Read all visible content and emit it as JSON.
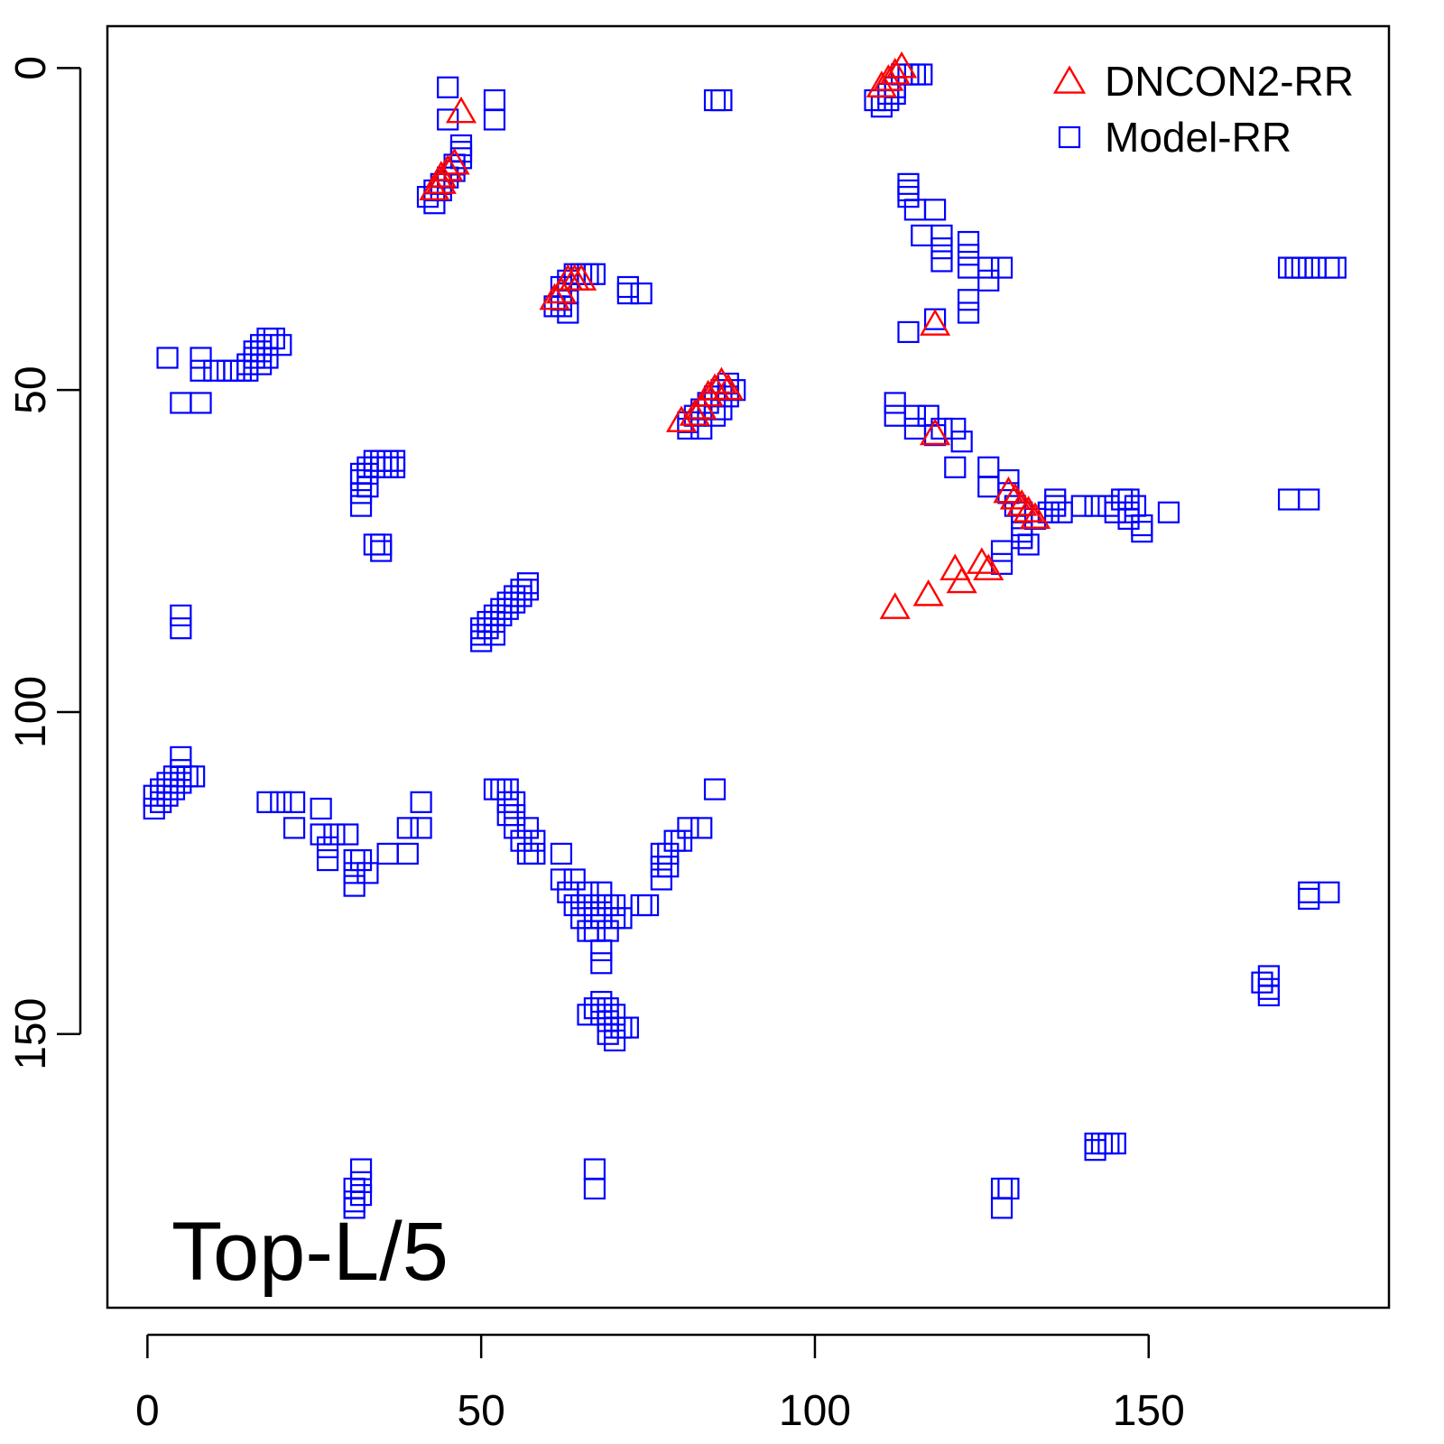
{
  "chart_data": {
    "type": "scatter",
    "title": "",
    "annotation": "Top-L/5",
    "xlabel": "",
    "ylabel": "",
    "xlim": [
      -6,
      186
    ],
    "ylim": [
      -6.5,
      192.5
    ],
    "y_axis_inverted": true,
    "x_ticks": [
      0,
      50,
      100,
      150
    ],
    "x_tick_labels": [
      "0",
      "50",
      "100",
      "150"
    ],
    "y_ticks": [
      0,
      50,
      100,
      150
    ],
    "y_tick_labels": [
      "0",
      "50",
      "100",
      "150"
    ],
    "grid": false,
    "legend_position": "top-right",
    "series": [
      {
        "name": "DNCON2-RR",
        "marker": "triangle",
        "color": "#ff0000",
        "points": [
          [
            44,
            17
          ],
          [
            45,
            16
          ],
          [
            46,
            15
          ],
          [
            47,
            7
          ],
          [
            44,
            18
          ],
          [
            43,
            19
          ],
          [
            61,
            36
          ],
          [
            62,
            35
          ],
          [
            63,
            33
          ],
          [
            64,
            33
          ],
          [
            65,
            33
          ],
          [
            80,
            55
          ],
          [
            82,
            54
          ],
          [
            83,
            53
          ],
          [
            84,
            51
          ],
          [
            85,
            50
          ],
          [
            86,
            49
          ],
          [
            87,
            50
          ],
          [
            110,
            3
          ],
          [
            111,
            2
          ],
          [
            112,
            1
          ],
          [
            113,
            0
          ],
          [
            118,
            40
          ],
          [
            118,
            57
          ],
          [
            129,
            66
          ],
          [
            130,
            67
          ],
          [
            131,
            68
          ],
          [
            132,
            69
          ],
          [
            133,
            70
          ],
          [
            112,
            84
          ],
          [
            117,
            82
          ],
          [
            121,
            78
          ],
          [
            122,
            80
          ],
          [
            125,
            77
          ],
          [
            126,
            78
          ]
        ]
      },
      {
        "name": "Model-RR",
        "marker": "square",
        "color": "#0000ff",
        "points": [
          [
            45,
            3
          ],
          [
            45,
            8
          ],
          [
            47,
            12
          ],
          [
            47,
            13
          ],
          [
            47,
            14
          ],
          [
            46,
            15
          ],
          [
            45,
            17
          ],
          [
            44,
            18
          ],
          [
            43,
            19
          ],
          [
            42,
            20
          ],
          [
            43,
            21
          ],
          [
            44,
            19
          ],
          [
            46,
            16
          ],
          [
            52,
            5
          ],
          [
            52,
            8
          ],
          [
            85,
            5
          ],
          [
            86,
            5
          ],
          [
            109,
            5
          ],
          [
            110,
            6
          ],
          [
            111,
            4
          ],
          [
            112,
            3
          ],
          [
            113,
            1
          ],
          [
            114,
            1
          ],
          [
            115,
            1
          ],
          [
            116,
            1
          ],
          [
            111,
            5
          ],
          [
            112,
            4
          ],
          [
            114,
            18
          ],
          [
            114,
            19
          ],
          [
            114,
            20
          ],
          [
            115,
            22
          ],
          [
            118,
            22
          ],
          [
            116,
            26
          ],
          [
            119,
            26
          ],
          [
            119,
            28
          ],
          [
            119,
            30
          ],
          [
            123,
            27
          ],
          [
            123,
            29
          ],
          [
            123,
            31
          ],
          [
            126,
            31
          ],
          [
            128,
            31
          ],
          [
            126,
            33
          ],
          [
            123,
            38
          ],
          [
            123,
            36
          ],
          [
            118,
            39
          ],
          [
            114,
            41
          ],
          [
            62,
            34
          ],
          [
            62,
            36
          ],
          [
            63,
            33
          ],
          [
            63,
            35
          ],
          [
            64,
            32
          ],
          [
            65,
            32
          ],
          [
            66,
            32
          ],
          [
            67,
            32
          ],
          [
            62,
            37
          ],
          [
            63,
            38
          ],
          [
            61,
            37
          ],
          [
            72,
            34
          ],
          [
            74,
            35
          ],
          [
            72,
            35
          ],
          [
            3,
            45
          ],
          [
            8,
            45
          ],
          [
            8,
            47
          ],
          [
            10,
            47
          ],
          [
            12,
            47
          ],
          [
            13,
            47
          ],
          [
            14,
            47
          ],
          [
            15,
            46
          ],
          [
            16,
            45
          ],
          [
            16,
            44
          ],
          [
            17,
            44
          ],
          [
            17,
            43
          ],
          [
            18,
            42
          ],
          [
            19,
            42
          ],
          [
            20,
            43
          ],
          [
            18,
            45
          ],
          [
            17,
            46
          ],
          [
            15,
            47
          ],
          [
            5,
            52
          ],
          [
            8,
            52
          ],
          [
            81,
            55
          ],
          [
            82,
            54
          ],
          [
            83,
            53
          ],
          [
            84,
            52
          ],
          [
            85,
            51
          ],
          [
            86,
            50
          ],
          [
            87,
            49
          ],
          [
            88,
            50
          ],
          [
            81,
            56
          ],
          [
            83,
            56
          ],
          [
            85,
            54
          ],
          [
            86,
            53
          ],
          [
            87,
            51
          ],
          [
            112,
            52
          ],
          [
            112,
            54
          ],
          [
            115,
            54
          ],
          [
            115,
            56
          ],
          [
            117,
            54
          ],
          [
            118,
            57
          ],
          [
            119,
            56
          ],
          [
            121,
            56
          ],
          [
            122,
            58
          ],
          [
            121,
            62
          ],
          [
            126,
            62
          ],
          [
            126,
            65
          ],
          [
            129,
            64
          ],
          [
            129,
            66
          ],
          [
            130,
            68
          ],
          [
            131,
            69
          ],
          [
            131,
            71
          ],
          [
            131,
            73
          ],
          [
            132,
            74
          ],
          [
            128,
            75
          ],
          [
            128,
            77
          ],
          [
            131,
            72
          ],
          [
            133,
            70
          ],
          [
            135,
            69
          ],
          [
            136,
            68
          ],
          [
            136,
            67
          ],
          [
            137,
            69
          ],
          [
            140,
            68
          ],
          [
            142,
            68
          ],
          [
            144,
            68
          ],
          [
            145,
            69
          ],
          [
            146,
            67
          ],
          [
            147,
            67
          ],
          [
            147,
            69
          ],
          [
            148,
            68
          ],
          [
            147,
            70
          ],
          [
            149,
            71
          ],
          [
            149,
            72
          ],
          [
            153,
            69
          ],
          [
            171,
            31
          ],
          [
            172,
            31
          ],
          [
            173,
            31
          ],
          [
            174,
            31
          ],
          [
            175,
            31
          ],
          [
            177,
            31
          ],
          [
            178,
            31
          ],
          [
            171,
            67
          ],
          [
            174,
            67
          ],
          [
            32,
            63
          ],
          [
            32,
            64
          ],
          [
            33,
            62
          ],
          [
            33,
            63
          ],
          [
            34,
            61
          ],
          [
            34,
            62
          ],
          [
            35,
            61
          ],
          [
            35,
            62
          ],
          [
            36,
            61
          ],
          [
            36,
            62
          ],
          [
            37,
            61
          ],
          [
            37,
            62
          ],
          [
            32,
            66
          ],
          [
            32,
            68
          ],
          [
            33,
            65
          ],
          [
            34,
            74
          ],
          [
            35,
            74
          ],
          [
            35,
            75
          ],
          [
            50,
            87
          ],
          [
            50,
            88
          ],
          [
            51,
            86
          ],
          [
            51,
            87
          ],
          [
            52,
            85
          ],
          [
            52,
            86
          ],
          [
            53,
            84
          ],
          [
            53,
            85
          ],
          [
            54,
            83
          ],
          [
            54,
            84
          ],
          [
            55,
            82
          ],
          [
            55,
            83
          ],
          [
            56,
            81
          ],
          [
            56,
            82
          ],
          [
            57,
            80
          ],
          [
            57,
            81
          ],
          [
            50,
            89
          ],
          [
            52,
            88
          ],
          [
            5,
            85
          ],
          [
            5,
            87
          ],
          [
            1,
            113
          ],
          [
            1,
            115
          ],
          [
            2,
            112
          ],
          [
            2,
            114
          ],
          [
            3,
            111
          ],
          [
            3,
            113
          ],
          [
            4,
            110
          ],
          [
            4,
            112
          ],
          [
            5,
            109
          ],
          [
            5,
            111
          ],
          [
            6,
            110
          ],
          [
            5,
            107
          ],
          [
            7,
            110
          ],
          [
            18,
            114
          ],
          [
            20,
            114
          ],
          [
            22,
            114
          ],
          [
            22,
            118
          ],
          [
            26,
            115
          ],
          [
            26,
            119
          ],
          [
            27,
            121
          ],
          [
            27,
            123
          ],
          [
            28,
            119
          ],
          [
            30,
            119
          ],
          [
            31,
            123
          ],
          [
            31,
            125
          ],
          [
            31,
            127
          ],
          [
            32,
            123
          ],
          [
            33,
            125
          ],
          [
            36,
            122
          ],
          [
            39,
            122
          ],
          [
            39,
            118
          ],
          [
            41,
            118
          ],
          [
            41,
            114
          ],
          [
            52,
            112
          ],
          [
            53,
            112
          ],
          [
            54,
            112
          ],
          [
            54,
            114
          ],
          [
            55,
            114
          ],
          [
            54,
            116
          ],
          [
            55,
            116
          ],
          [
            55,
            118
          ],
          [
            57,
            118
          ],
          [
            56,
            120
          ],
          [
            57,
            122
          ],
          [
            58,
            120
          ],
          [
            58,
            122
          ],
          [
            62,
            122
          ],
          [
            62,
            126
          ],
          [
            63,
            128
          ],
          [
            64,
            126
          ],
          [
            64,
            130
          ],
          [
            65,
            130
          ],
          [
            65,
            132
          ],
          [
            66,
            128
          ],
          [
            66,
            130
          ],
          [
            66,
            134
          ],
          [
            67,
            132
          ],
          [
            67,
            134
          ],
          [
            68,
            128
          ],
          [
            68,
            130
          ],
          [
            68,
            132
          ],
          [
            69,
            130
          ],
          [
            69,
            134
          ],
          [
            70,
            130
          ],
          [
            70,
            132
          ],
          [
            71,
            132
          ],
          [
            74,
            130
          ],
          [
            75,
            130
          ],
          [
            77,
            126
          ],
          [
            77,
            124
          ],
          [
            77,
            122
          ],
          [
            78,
            124
          ],
          [
            78,
            122
          ],
          [
            79,
            120
          ],
          [
            80,
            120
          ],
          [
            81,
            118
          ],
          [
            83,
            118
          ],
          [
            85,
            112
          ],
          [
            68,
            137
          ],
          [
            68,
            139
          ],
          [
            66,
            147
          ],
          [
            67,
            146
          ],
          [
            68,
            145
          ],
          [
            69,
            146
          ],
          [
            70,
            147
          ],
          [
            68,
            147
          ],
          [
            69,
            148
          ],
          [
            70,
            149
          ],
          [
            71,
            149
          ],
          [
            72,
            149
          ],
          [
            69,
            150
          ],
          [
            70,
            151
          ],
          [
            167,
            142
          ],
          [
            168,
            141
          ],
          [
            168,
            143
          ],
          [
            168,
            144
          ],
          [
            174,
            128
          ],
          [
            174,
            129
          ],
          [
            177,
            128
          ],
          [
            142,
            167
          ],
          [
            143,
            167
          ],
          [
            144,
            167
          ],
          [
            145,
            167
          ],
          [
            142,
            168
          ],
          [
            128,
            174
          ],
          [
            129,
            174
          ],
          [
            128,
            177
          ],
          [
            32,
            171
          ],
          [
            32,
            173
          ],
          [
            31,
            174
          ],
          [
            32,
            175
          ],
          [
            31,
            176
          ],
          [
            31,
            177
          ],
          [
            67,
            171
          ],
          [
            67,
            174
          ]
        ]
      }
    ]
  }
}
